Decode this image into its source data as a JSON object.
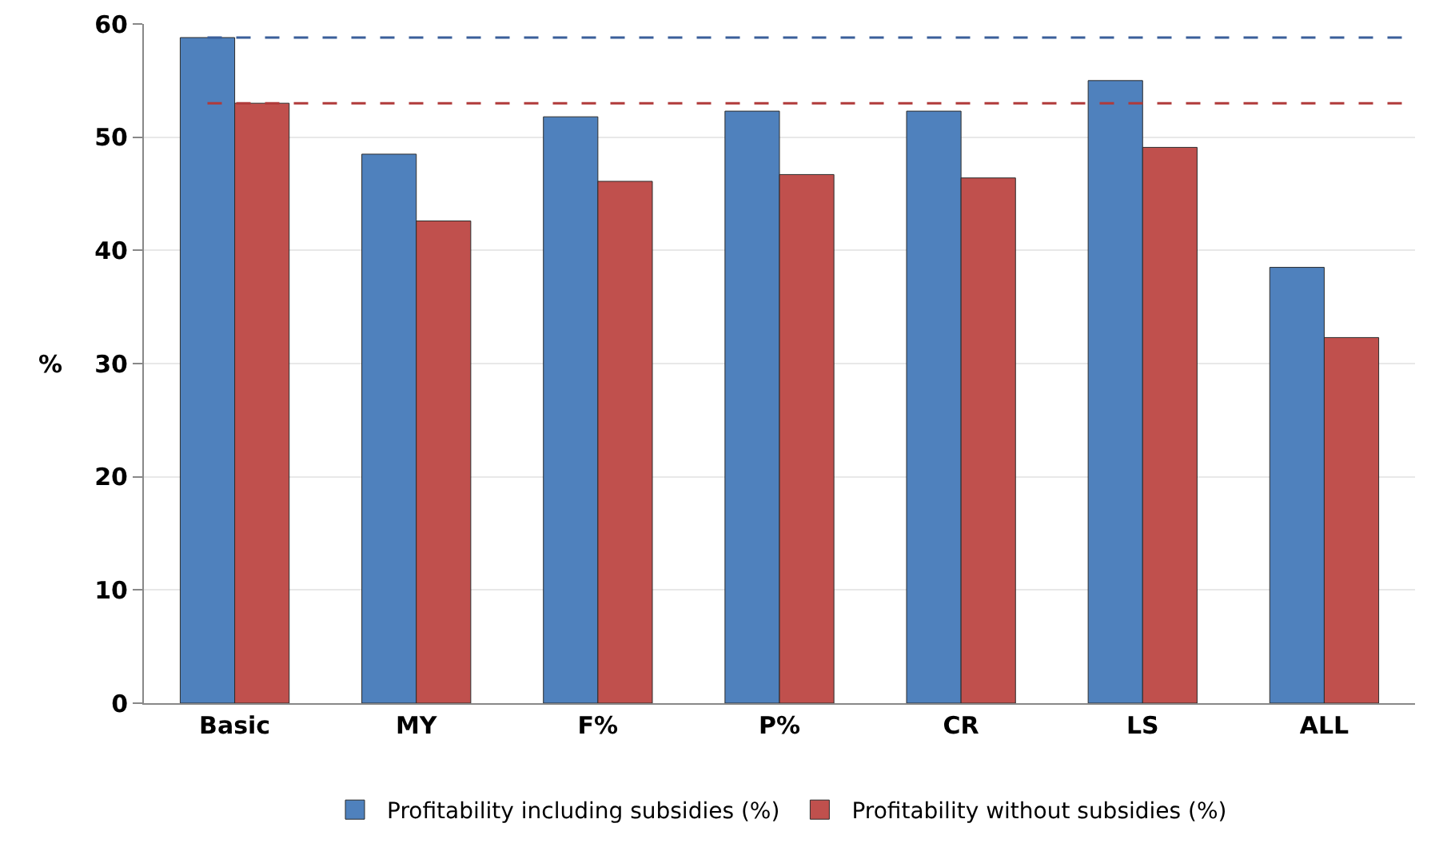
{
  "chart_data": {
    "type": "bar",
    "ylabel": "%",
    "categories": [
      "Basic",
      "MY",
      "F%",
      "P%",
      "CR",
      "LS",
      "ALL"
    ],
    "series": [
      {
        "name": "Profitability including subsidies (%)",
        "color": "#4f81bd",
        "values": [
          58.8,
          48.5,
          51.8,
          52.3,
          52.3,
          55.0,
          38.5
        ]
      },
      {
        "name": "Profitability without subsidies (%)",
        "color": "#c0504d",
        "values": [
          53.0,
          42.6,
          46.1,
          46.7,
          46.4,
          49.1,
          32.3
        ]
      }
    ],
    "ylim": [
      0,
      60
    ],
    "yticks": [
      0,
      10,
      20,
      30,
      40,
      50,
      60
    ],
    "grid": "y",
    "legend": "bottom",
    "ref_lines": [
      {
        "axis": "y",
        "value": 58.8,
        "color": "#3a5f9a",
        "line_style": "dashed"
      },
      {
        "axis": "y",
        "value": 53.0,
        "color": "#b03a3a",
        "line_style": "dashed"
      }
    ]
  }
}
